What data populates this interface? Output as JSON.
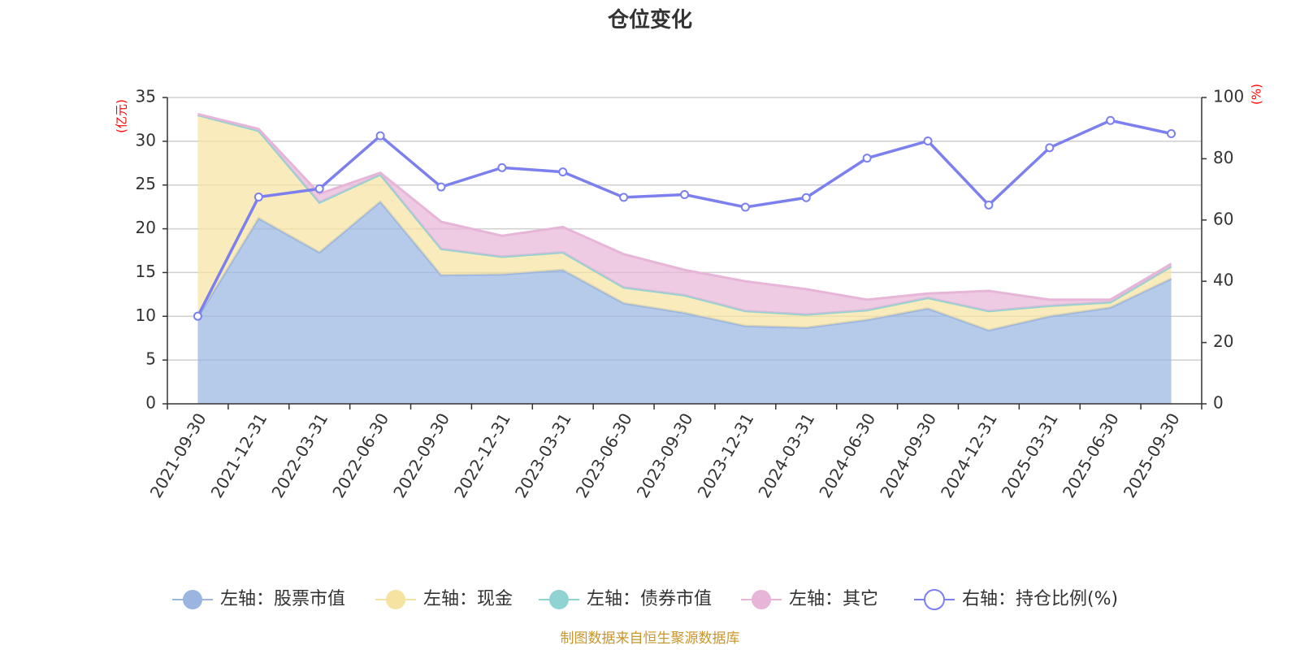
{
  "chart_data": {
    "type": "area",
    "title": "仓位变化",
    "categories": [
      "2021-09-30",
      "2021-12-31",
      "2022-03-31",
      "2022-06-30",
      "2022-09-30",
      "2022-12-31",
      "2023-03-31",
      "2023-06-30",
      "2023-09-30",
      "2023-12-31",
      "2024-03-31",
      "2024-06-30",
      "2024-09-30",
      "2024-12-31",
      "2025-03-31",
      "2025-06-30",
      "2025-09-30"
    ],
    "left_axis": {
      "unit": "(亿元)",
      "ylim": [
        0,
        35
      ],
      "ticks": [
        "0",
        "5",
        "10",
        "15",
        "20",
        "25",
        "30",
        "35"
      ]
    },
    "right_axis": {
      "unit": "(%)",
      "ylim": [
        0,
        100
      ],
      "ticks": [
        "0",
        "20",
        "40",
        "60",
        "80",
        "100"
      ]
    },
    "series": [
      {
        "name": "左轴：股票市值",
        "axis": "left",
        "stack": true,
        "color": "#9ab5e0",
        "values": [
          9.9,
          21.2,
          17.3,
          23.1,
          14.7,
          14.8,
          15.3,
          11.5,
          10.4,
          8.9,
          8.7,
          9.6,
          10.9,
          8.4,
          10.0,
          11.0,
          14.3
        ]
      },
      {
        "name": "左轴：现金",
        "axis": "left",
        "stack": true,
        "color": "#f7e3a1",
        "values": [
          23.1,
          10.0,
          5.7,
          3.1,
          3.0,
          2.0,
          2.0,
          1.8,
          2.0,
          1.7,
          1.5,
          1.1,
          1.2,
          2.2,
          1.2,
          0.6,
          1.4
        ]
      },
      {
        "name": "左轴：债券市值",
        "axis": "left",
        "stack": true,
        "color": "#8fd3d3",
        "values": [
          0,
          0,
          0,
          0,
          0,
          0,
          0,
          0,
          0,
          0,
          0,
          0,
          0,
          0,
          0,
          0,
          0
        ]
      },
      {
        "name": "左轴：其它",
        "axis": "left",
        "stack": true,
        "color": "#e7b5d8",
        "values": [
          0.1,
          0.2,
          1.0,
          0.2,
          3.1,
          2.4,
          2.9,
          3.8,
          2.9,
          3.4,
          2.9,
          1.2,
          0.5,
          2.3,
          0.7,
          0.3,
          0.3
        ]
      },
      {
        "name": "右轴：持仓比例(%)",
        "axis": "right",
        "stack": false,
        "color": "#7b80ee",
        "values": [
          28.6,
          67.5,
          70.2,
          87.5,
          70.8,
          77.1,
          75.7,
          67.4,
          68.3,
          64.2,
          67.3,
          80.2,
          85.8,
          64.9,
          83.6,
          92.5,
          88.2
        ]
      }
    ]
  },
  "source_text": "制图数据来自恒生聚源数据库"
}
